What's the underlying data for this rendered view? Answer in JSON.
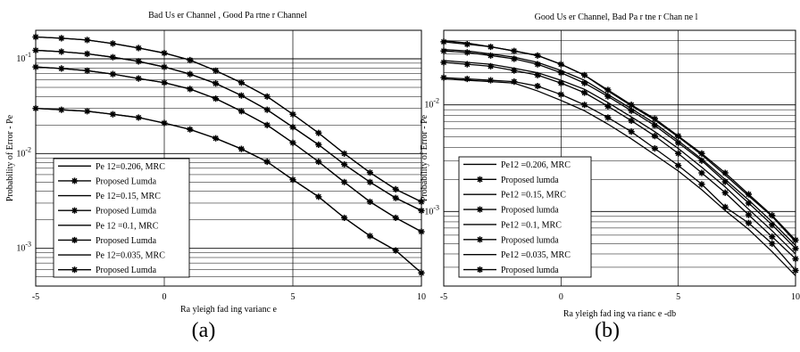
{
  "captions": {
    "a": "(a)",
    "b": "(b)"
  },
  "chart_data": [
    {
      "type": "line",
      "title": "Bad Us er Channel , Good Pa rtne r Channel",
      "xlabel": "Ra yleigh fad ing varianc e",
      "ylabel": "Probability of Error - Pe",
      "xlim": [
        -5,
        10
      ],
      "ylim": [
        0.0004,
        0.2
      ],
      "yscale": "log",
      "grid": true,
      "legend_position": "bottom-left",
      "x_ticks": [
        -5,
        0,
        5,
        10
      ],
      "x_tick_labels": [
        "-5",
        "0",
        "5",
        "10"
      ],
      "y_ticks": [
        0.001,
        0.01,
        0.1
      ],
      "y_tick_labels": [
        "10-3",
        "10-2",
        "10-1"
      ],
      "x": [
        -5,
        -4,
        -3,
        -2,
        -1,
        0,
        1,
        2,
        3,
        4,
        5,
        6,
        7,
        8,
        9,
        10
      ],
      "series": [
        {
          "name": "Pe 12=0.206, MRC",
          "marker": "none",
          "values": [
            0.17,
            0.165,
            0.158,
            0.145,
            0.13,
            0.115,
            0.097,
            0.075,
            0.056,
            0.04,
            0.026,
            0.0165,
            0.01,
            0.0063,
            0.0042,
            0.0031
          ]
        },
        {
          "name": "Proposed  Lumda",
          "marker": "star",
          "values": [
            0.17,
            0.165,
            0.158,
            0.145,
            0.13,
            0.115,
            0.097,
            0.075,
            0.056,
            0.04,
            0.026,
            0.0165,
            0.01,
            0.0063,
            0.0042,
            0.0031
          ]
        },
        {
          "name": "Pe 12=0.15, MRC",
          "marker": "none",
          "values": [
            0.123,
            0.119,
            0.113,
            0.104,
            0.094,
            0.082,
            0.069,
            0.055,
            0.041,
            0.029,
            0.019,
            0.0124,
            0.0077,
            0.005,
            0.0034,
            0.0025
          ]
        },
        {
          "name": "Proposed  Lumda",
          "marker": "star",
          "values": [
            0.123,
            0.119,
            0.113,
            0.104,
            0.094,
            0.082,
            0.069,
            0.055,
            0.041,
            0.029,
            0.019,
            0.0124,
            0.0077,
            0.005,
            0.0034,
            0.0025
          ]
        },
        {
          "name": "Pe 12 =0.1, MRC",
          "marker": "none",
          "values": [
            0.082,
            0.079,
            0.075,
            0.069,
            0.062,
            0.056,
            0.048,
            0.038,
            0.028,
            0.02,
            0.013,
            0.0082,
            0.005,
            0.0031,
            0.0021,
            0.0015
          ]
        },
        {
          "name": "Proposed  Lumda",
          "marker": "star",
          "values": [
            0.082,
            0.079,
            0.075,
            0.069,
            0.062,
            0.056,
            0.048,
            0.038,
            0.028,
            0.02,
            0.013,
            0.0082,
            0.005,
            0.0031,
            0.0021,
            0.0015
          ]
        },
        {
          "name": "Pe 12=0.035, MRC",
          "marker": "none",
          "values": [
            0.03,
            0.029,
            0.028,
            0.026,
            0.024,
            0.021,
            0.018,
            0.0145,
            0.0112,
            0.0082,
            0.0053,
            0.0035,
            0.0021,
            0.00135,
            0.00095,
            0.00055
          ]
        },
        {
          "name": "Proposed  Lumda",
          "marker": "star",
          "values": [
            0.03,
            0.029,
            0.028,
            0.026,
            0.024,
            0.021,
            0.018,
            0.0145,
            0.0112,
            0.0082,
            0.0053,
            0.0035,
            0.0021,
            0.00135,
            0.00095,
            0.00055
          ]
        }
      ]
    },
    {
      "type": "line",
      "title": "Good Us er Channel, Bad Pa r tne r Chan ne l",
      "xlabel": "Ra yleigh fad ing va rianc e -db",
      "ylabel": "Probability of Error - Pe",
      "xlim": [
        -5,
        10
      ],
      "ylim": [
        0.0002,
        0.05
      ],
      "yscale": "log",
      "grid": true,
      "legend_position": "bottom-left",
      "x_ticks": [
        -5,
        0,
        5,
        10
      ],
      "x_tick_labels": [
        "-5",
        "0",
        "5",
        "10"
      ],
      "y_ticks": [
        0.001,
        0.01
      ],
      "y_tick_labels": [
        "10-3",
        "10-2"
      ],
      "x": [
        -5,
        -4,
        -3,
        -2,
        -1,
        0,
        1,
        2,
        3,
        4,
        5,
        6,
        7,
        8,
        9,
        10
      ],
      "series": [
        {
          "name": "Pe12 =0.206, MRC",
          "marker": "none",
          "values": [
            0.04,
            0.038,
            0.035,
            0.032,
            0.029,
            0.024,
            0.019,
            0.0135,
            0.0098,
            0.0072,
            0.005,
            0.0034,
            0.0022,
            0.0014,
            0.0009,
            0.00052
          ]
        },
        {
          "name": "Proposed  lumda",
          "marker": "star",
          "values": [
            0.039,
            0.037,
            0.035,
            0.032,
            0.029,
            0.024,
            0.019,
            0.0138,
            0.01,
            0.0074,
            0.0051,
            0.0035,
            0.0023,
            0.00145,
            0.00092,
            0.00054
          ]
        },
        {
          "name": "Pe12 =0.15, MRC",
          "marker": "none",
          "values": [
            0.033,
            0.032,
            0.03,
            0.028,
            0.025,
            0.021,
            0.017,
            0.0125,
            0.0092,
            0.0067,
            0.0046,
            0.0031,
            0.002,
            0.00128,
            0.0008,
            0.00048
          ]
        },
        {
          "name": "Proposed  lumda",
          "marker": "star",
          "values": [
            0.032,
            0.031,
            0.029,
            0.027,
            0.024,
            0.02,
            0.016,
            0.012,
            0.0088,
            0.0064,
            0.0044,
            0.003,
            0.0019,
            0.0012,
            0.00075,
            0.00045
          ]
        },
        {
          "name": "Pe12 =0.1, MRC",
          "marker": "none",
          "values": [
            0.026,
            0.025,
            0.024,
            0.022,
            0.02,
            0.017,
            0.014,
            0.0105,
            0.0077,
            0.0056,
            0.0039,
            0.0026,
            0.0017,
            0.00105,
            0.00066,
            0.0004
          ]
        },
        {
          "name": "Proposed  lumda",
          "marker": "star",
          "values": [
            0.025,
            0.024,
            0.023,
            0.021,
            0.019,
            0.016,
            0.013,
            0.0097,
            0.0071,
            0.0051,
            0.0035,
            0.0023,
            0.0015,
            0.00093,
            0.00058,
            0.00036
          ]
        },
        {
          "name": "Pe12 =0.035, MRC",
          "marker": "none",
          "values": [
            0.0175,
            0.017,
            0.0165,
            0.016,
            0.0135,
            0.011,
            0.0088,
            0.0066,
            0.0048,
            0.0034,
            0.0024,
            0.0016,
            0.00102,
            0.00068,
            0.00042,
            0.00025
          ]
        },
        {
          "name": "Proposed  lumda",
          "marker": "star",
          "values": [
            0.018,
            0.0175,
            0.017,
            0.0165,
            0.015,
            0.0125,
            0.01,
            0.0076,
            0.0056,
            0.0039,
            0.0027,
            0.0018,
            0.0011,
            0.00078,
            0.0005,
            0.00028
          ]
        }
      ]
    }
  ]
}
